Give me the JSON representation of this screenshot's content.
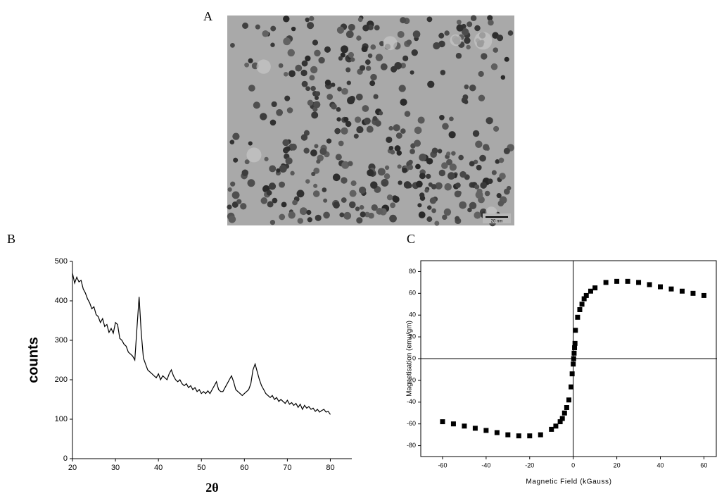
{
  "panels": {
    "a": "A",
    "b": "B",
    "c": "C"
  },
  "image": {
    "scale_bar": "20 nm"
  },
  "chart_data": [
    {
      "type": "line",
      "xlabel": "2θ",
      "ylabel": "counts",
      "color": "#000000",
      "xlim": [
        20,
        85
      ],
      "xticks": [
        20,
        30,
        40,
        50,
        60,
        70,
        80
      ],
      "ylim": [
        0,
        500
      ],
      "yticks": [
        0,
        100,
        200,
        300,
        400,
        500
      ],
      "x": [
        20,
        20.5,
        21,
        21.5,
        22,
        22.5,
        23,
        23.5,
        24,
        24.5,
        25,
        25.5,
        26,
        26.5,
        27,
        27.5,
        28,
        28.5,
        29,
        29.5,
        30,
        30.5,
        31,
        31.5,
        32,
        32.5,
        33,
        33.5,
        34,
        34.5,
        35,
        35.5,
        36,
        36.5,
        37,
        37.5,
        38,
        38.5,
        39,
        39.5,
        40,
        40.5,
        41,
        41.5,
        42,
        42.5,
        43,
        43.5,
        44,
        44.5,
        45,
        45.5,
        46,
        46.5,
        47,
        47.5,
        48,
        48.5,
        49,
        49.5,
        50,
        50.5,
        51,
        51.5,
        52,
        52.5,
        53,
        53.5,
        54,
        54.5,
        55,
        55.5,
        56,
        56.5,
        57,
        57.5,
        58,
        58.5,
        59,
        59.5,
        60,
        60.5,
        61,
        61.5,
        62,
        62.5,
        63,
        63.5,
        64,
        64.5,
        65,
        65.5,
        66,
        66.5,
        67,
        67.5,
        68,
        68.5,
        69,
        69.5,
        70,
        70.5,
        71,
        71.5,
        72,
        72.5,
        73,
        73.5,
        74,
        74.5,
        75,
        75.5,
        76,
        76.5,
        77,
        77.5,
        78,
        78.5,
        79,
        79.5,
        80
      ],
      "values": [
        470,
        445,
        460,
        448,
        452,
        430,
        420,
        405,
        395,
        380,
        385,
        365,
        360,
        345,
        355,
        335,
        340,
        320,
        330,
        318,
        345,
        340,
        305,
        300,
        290,
        285,
        270,
        265,
        260,
        250,
        330,
        410,
        320,
        255,
        240,
        225,
        220,
        215,
        210,
        205,
        215,
        200,
        210,
        205,
        200,
        215,
        225,
        210,
        200,
        195,
        200,
        190,
        185,
        190,
        180,
        185,
        175,
        180,
        170,
        175,
        165,
        170,
        165,
        172,
        165,
        175,
        185,
        195,
        175,
        170,
        170,
        180,
        190,
        200,
        210,
        195,
        175,
        170,
        165,
        160,
        165,
        170,
        175,
        190,
        225,
        240,
        220,
        200,
        185,
        175,
        165,
        160,
        155,
        160,
        150,
        155,
        145,
        150,
        145,
        140,
        148,
        138,
        142,
        135,
        140,
        130,
        138,
        125,
        135,
        128,
        132,
        125,
        128,
        120,
        125,
        118,
        122,
        125,
        118,
        120,
        112
      ]
    },
    {
      "type": "scatter",
      "xlabel": "Magnetic Field (kGauss)",
      "ylabel": "Magnetisation (emu/gm)",
      "color": "#000000",
      "xlim": [
        -70,
        66
      ],
      "xticks": [
        -60,
        -40,
        -20,
        0,
        20,
        40,
        60
      ],
      "ylim": [
        -90,
        90
      ],
      "yticks": [
        -80,
        -60,
        -40,
        -20,
        0,
        20,
        40,
        60,
        80
      ],
      "x": [
        -60,
        -55,
        -50,
        -45,
        -40,
        -35,
        -30,
        -25,
        -20,
        -15,
        -10,
        -8,
        -6,
        -5,
        -4,
        -3,
        -2,
        -1,
        -0.5,
        0,
        0.2,
        0.4,
        0.6,
        0.8,
        1,
        2,
        3,
        4,
        5,
        6,
        8,
        10,
        15,
        20,
        25,
        30,
        35,
        40,
        45,
        50,
        55,
        60
      ],
      "values": [
        -58,
        -60,
        -62,
        -64,
        -66,
        -68,
        -70,
        -71,
        -71,
        -70,
        -65,
        -62,
        -58,
        -55,
        -50,
        -45,
        -38,
        -26,
        -14,
        -5,
        0,
        5,
        10,
        14,
        26,
        38,
        45,
        50,
        55,
        58,
        62,
        65,
        70,
        71,
        71,
        70,
        68,
        66,
        64,
        62,
        60,
        58
      ]
    }
  ]
}
